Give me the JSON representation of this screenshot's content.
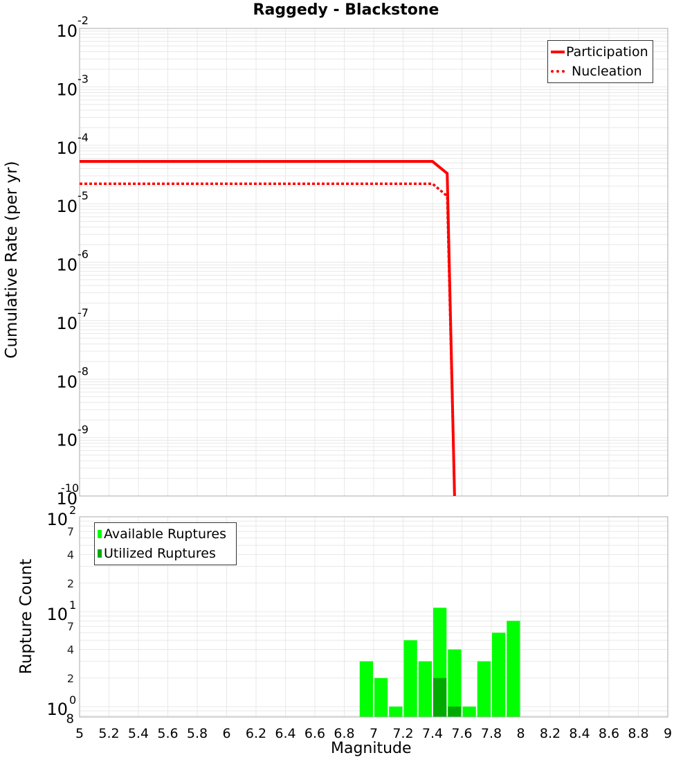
{
  "chart_data": [
    {
      "type": "line",
      "title": "Raggedy - Blackstone",
      "xlabel": "Magnitude",
      "ylabel": "Cumulative Rate (per yr)",
      "yscale": "log",
      "ylim": [
        1e-10,
        0.01
      ],
      "xlim": [
        5,
        9
      ],
      "grid": true,
      "legend_position": "upper right",
      "y_tick_labels": [
        "10^-2",
        "10^-3",
        "10^-4",
        "10^-5",
        "10^-6",
        "10^-7",
        "10^-8",
        "10^-9",
        "10^-10"
      ],
      "series": [
        {
          "name": "Participation",
          "style": "solid",
          "color": "#ff0000",
          "x": [
            5.0,
            7.4,
            7.5,
            7.55
          ],
          "y": [
            5.3e-05,
            5.3e-05,
            3.3e-05,
            1e-10
          ]
        },
        {
          "name": "Nucleation",
          "style": "dotted",
          "color": "#ff0000",
          "x": [
            5.0,
            7.4,
            7.5,
            7.55
          ],
          "y": [
            2.2e-05,
            2.2e-05,
            1.35e-05,
            1e-10
          ]
        }
      ]
    },
    {
      "type": "bar",
      "xlabel": "Magnitude",
      "ylabel": "Rupture Count",
      "yscale": "log",
      "ylim": [
        0.8,
        100
      ],
      "xlim": [
        5,
        9
      ],
      "grid": true,
      "legend_position": "upper left",
      "x_tick_labels": [
        "5",
        "5.2",
        "5.4",
        "5.6",
        "5.8",
        "6",
        "6.2",
        "6.4",
        "6.6",
        "6.8",
        "7",
        "7.2",
        "7.4",
        "7.6",
        "7.8",
        "8",
        "8.2",
        "8.4",
        "8.6",
        "8.8",
        "9"
      ],
      "y_tick_labels": [
        "10^2",
        "7",
        "4",
        "2",
        "10^1",
        "7",
        "4",
        "2",
        "10^0",
        "8"
      ],
      "categories": [
        6.95,
        7.05,
        7.15,
        7.25,
        7.35,
        7.45,
        7.55,
        7.65,
        7.75,
        7.85,
        7.95
      ],
      "series": [
        {
          "name": "Available Ruptures",
          "color": "#00ff00",
          "values": [
            3,
            2,
            1,
            5,
            3,
            11,
            4,
            1,
            3,
            6,
            8
          ]
        },
        {
          "name": "Utilized Ruptures",
          "color": "#00aa00",
          "values": [
            0,
            0,
            0,
            0,
            0,
            2,
            1,
            0,
            0,
            0,
            0
          ]
        }
      ]
    }
  ],
  "labels": {
    "title": "Raggedy - Blackstone",
    "top_ylabel": "Cumulative Rate (per yr)",
    "bottom_ylabel": "Rupture Count",
    "xlabel": "Magnitude",
    "legend_top": [
      "Participation",
      "Nucleation"
    ],
    "legend_bottom": [
      "Available Ruptures",
      "Utilized Ruptures"
    ]
  },
  "colors": {
    "line": "#ff0000",
    "available": "#00ff00",
    "utilized": "#00aa00",
    "grid": "#e8e8e8"
  }
}
